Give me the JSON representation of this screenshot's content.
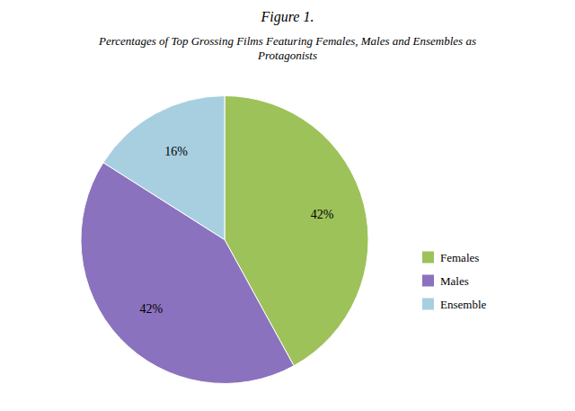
{
  "chart_data": {
    "type": "pie",
    "title": "Figure 1.",
    "subtitle": "Percentages of Top Grossing Films Featuring Females, Males and Ensembles as\nProtagonists",
    "categories": [
      "Females",
      "Males",
      "Ensemble"
    ],
    "values": [
      42,
      42,
      16
    ],
    "value_labels": [
      "42%",
      "42%",
      "16%"
    ],
    "colors": [
      "#9dc25a",
      "#8b72be",
      "#a8cfe0"
    ],
    "data_labels": true,
    "legend": "right"
  }
}
